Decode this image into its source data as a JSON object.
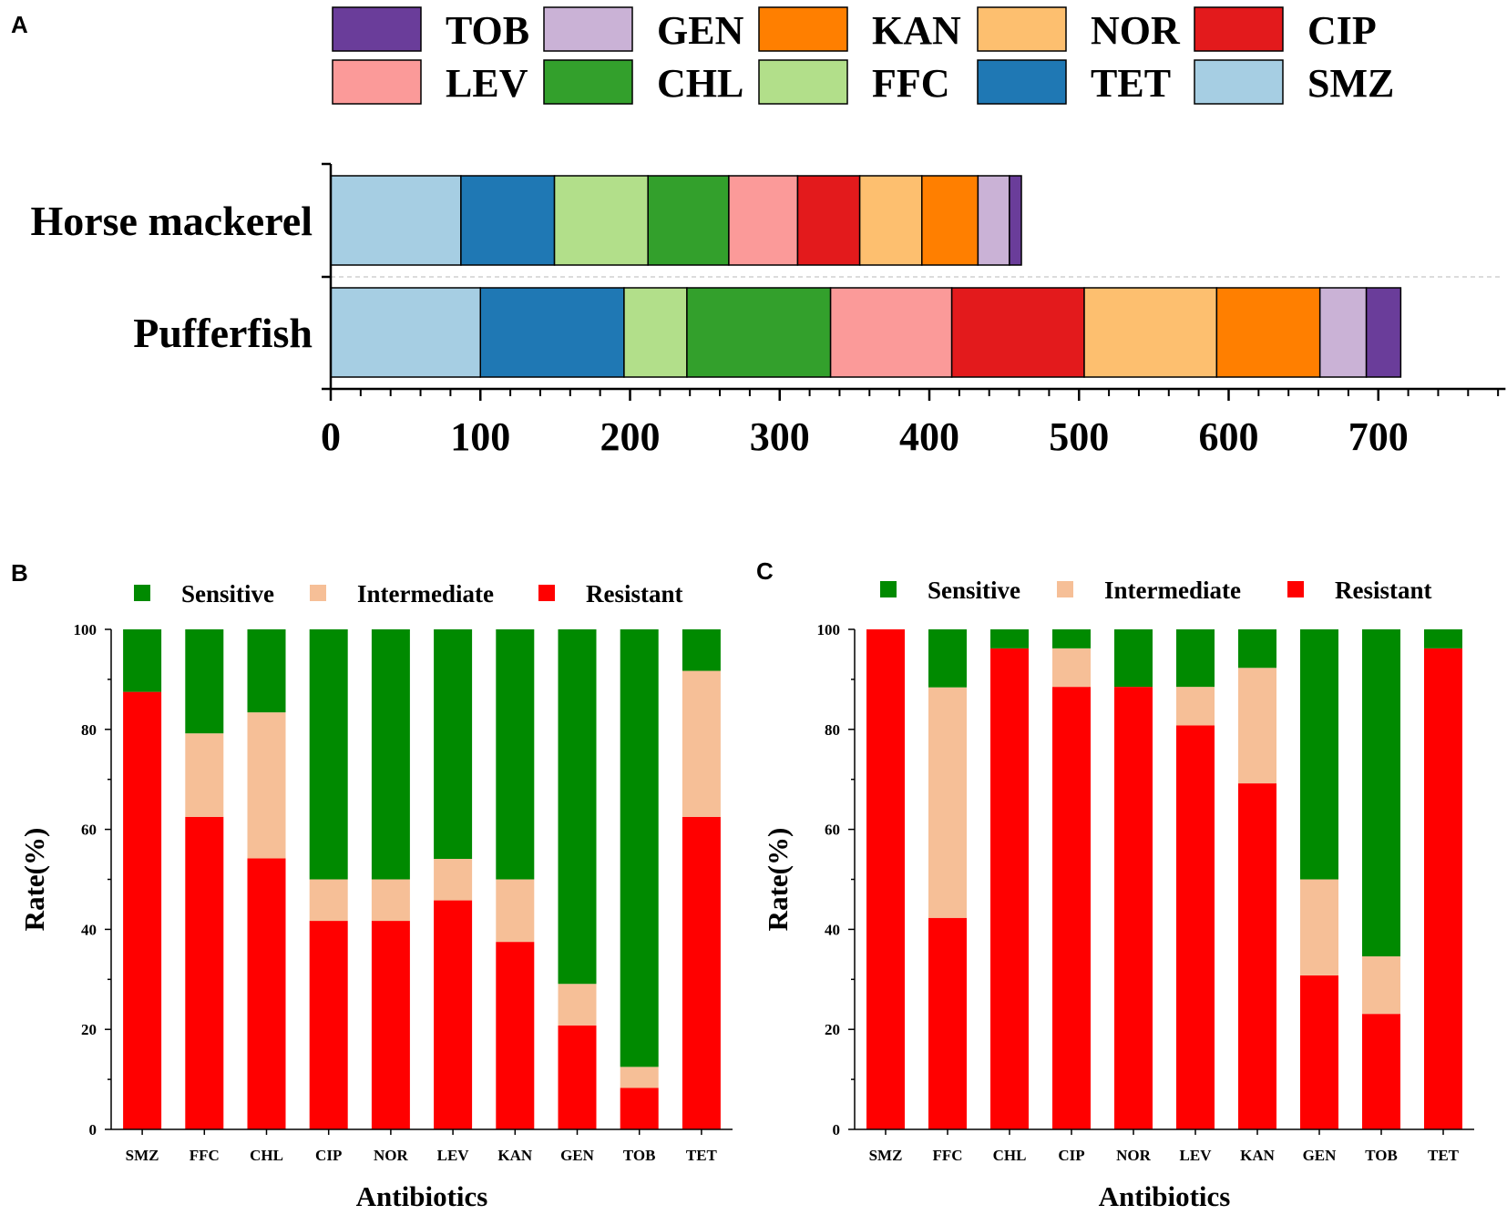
{
  "chart_data": [
    {
      "panel": "A",
      "type": "bar",
      "orientation": "horizontal",
      "stacked": true,
      "categories": [
        "Horse mackerel",
        "Pufferfish"
      ],
      "series": [
        {
          "name": "SMZ",
          "color": "#a6cee3",
          "values": [
            87,
            100
          ]
        },
        {
          "name": "TET",
          "color": "#1f78b4",
          "values": [
            62.5,
            96
          ]
        },
        {
          "name": "FFC",
          "color": "#b2df8a",
          "values": [
            62.5,
            42
          ]
        },
        {
          "name": "CHL",
          "color": "#33a02c",
          "values": [
            54,
            96
          ]
        },
        {
          "name": "LEV",
          "color": "#fb9a99",
          "values": [
            46,
            81
          ]
        },
        {
          "name": "CIP",
          "color": "#e31a1c",
          "values": [
            41.5,
            88.5
          ]
        },
        {
          "name": "NOR",
          "color": "#fdbf6f",
          "values": [
            41.5,
            88.5
          ]
        },
        {
          "name": "KAN",
          "color": "#ff7f00",
          "values": [
            37.5,
            69
          ]
        },
        {
          "name": "GEN",
          "color": "#cab2d6",
          "values": [
            21,
            31
          ]
        },
        {
          "name": "TOB",
          "color": "#6a3d9a",
          "values": [
            8,
            23
          ]
        }
      ],
      "legend_order": [
        "TOB",
        "GEN",
        "KAN",
        "NOR",
        "CIP",
        "LEV",
        "CHL",
        "FFC",
        "TET",
        "SMZ"
      ],
      "xticks": [
        "0",
        "100",
        "200",
        "300",
        "400",
        "500",
        "600",
        "700"
      ],
      "xlim": [
        0,
        785
      ],
      "title": "",
      "xlabel": "",
      "ylabel": "",
      "legend_position": "top",
      "grid": false
    },
    {
      "panel": "B",
      "type": "bar",
      "stacked": true,
      "categories": [
        "SMZ",
        "FFC",
        "CHL",
        "CIP",
        "NOR",
        "LEV",
        "KAN",
        "GEN",
        "TOB",
        "TET"
      ],
      "series": [
        {
          "name": "Resistant",
          "color": "#ff0000",
          "values": [
            87.5,
            62.5,
            54.2,
            41.7,
            41.7,
            45.8,
            37.5,
            20.8,
            8.3,
            62.5
          ]
        },
        {
          "name": "Intermediate",
          "color": "#f6bf97",
          "values": [
            0,
            16.7,
            29.2,
            8.3,
            8.3,
            8.3,
            12.5,
            8.3,
            4.2,
            29.2
          ]
        },
        {
          "name": "Sensitive",
          "color": "#008a00",
          "values": [
            12.5,
            20.8,
            16.6,
            50,
            50,
            45.9,
            50,
            70.9,
            87.5,
            8.3
          ]
        }
      ],
      "legend_order": [
        "Sensitive",
        "Intermediate",
        "Resistant"
      ],
      "yticks": [
        "0",
        "20",
        "40",
        "60",
        "80",
        "100"
      ],
      "ylim": [
        0,
        100
      ],
      "title": "",
      "xlabel": "Antibiotics",
      "ylabel": "Rate(%)",
      "legend_position": "top",
      "grid": false
    },
    {
      "panel": "C",
      "type": "bar",
      "stacked": true,
      "categories": [
        "SMZ",
        "FFC",
        "CHL",
        "CIP",
        "NOR",
        "LEV",
        "KAN",
        "GEN",
        "TOB",
        "TET"
      ],
      "series": [
        {
          "name": "Resistant",
          "color": "#ff0000",
          "values": [
            100,
            42.3,
            96.2,
            88.5,
            88.5,
            80.8,
            69.2,
            30.8,
            23.1,
            96.2
          ]
        },
        {
          "name": "Intermediate",
          "color": "#f6bf97",
          "values": [
            0,
            46.1,
            0,
            7.7,
            0,
            7.7,
            23.1,
            19.2,
            11.5,
            0
          ]
        },
        {
          "name": "Sensitive",
          "color": "#008a00",
          "values": [
            0,
            11.6,
            3.8,
            3.8,
            11.5,
            11.5,
            7.7,
            50,
            65.4,
            3.8
          ]
        }
      ],
      "legend_order": [
        "Sensitive",
        "Intermediate",
        "Resistant"
      ],
      "yticks": [
        "0",
        "20",
        "40",
        "60",
        "80",
        "100"
      ],
      "ylim": [
        0,
        100
      ],
      "title": "",
      "xlabel": "Antibiotics",
      "ylabel": "Rate(%)",
      "legend_position": "top",
      "grid": false
    }
  ]
}
